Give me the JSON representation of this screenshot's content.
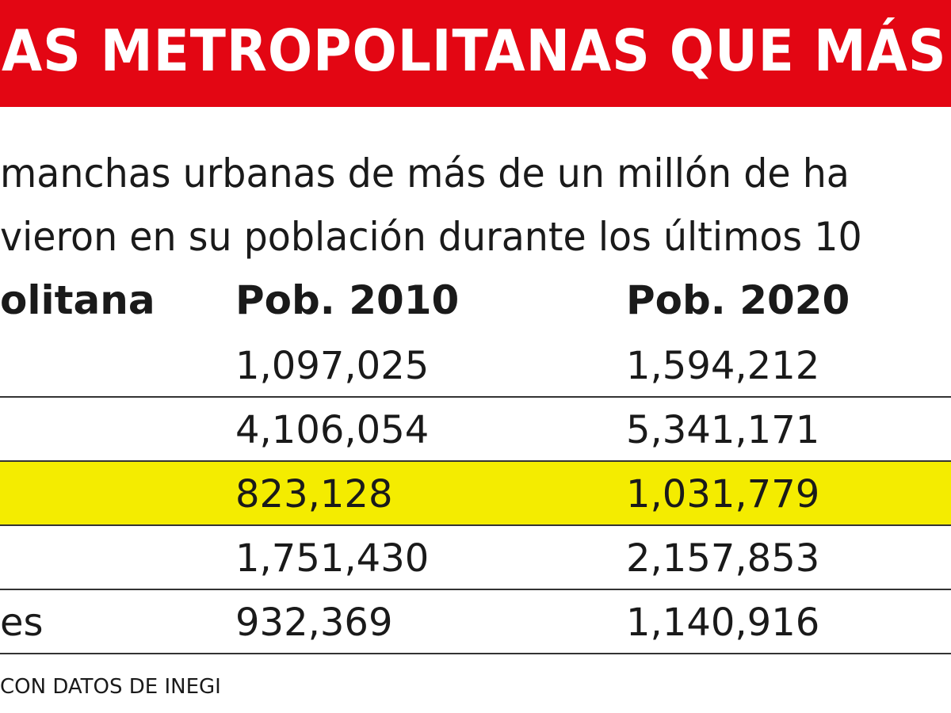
{
  "header": {
    "title": "AS METROPOLITANAS QUE MÁS CR",
    "subtitle_lines": [
      "manchas urbanas de más de un millón de ha",
      "vieron en su población durante los últimos 10"
    ]
  },
  "table": {
    "columns": [
      "olitana",
      "Pob. 2010",
      "Pob. 2020"
    ],
    "rows": [
      {
        "pob_2010": "1,097,025",
        "pob_2020": "1,594,212"
      },
      {
        "pob_2010": "4,106,054",
        "pob_2020": "5,341,171"
      },
      {
        "pob_2010": "823,128",
        "pob_2020": "1,031,779",
        "highlight": true
      },
      {
        "pob_2010": "1,751,430",
        "pob_2020": "2,157,853"
      },
      {
        "name": "es",
        "pob_2010": "932,369",
        "pob_2020": "1,140,916"
      }
    ]
  },
  "source": "CON DATOS DE INEGI"
}
